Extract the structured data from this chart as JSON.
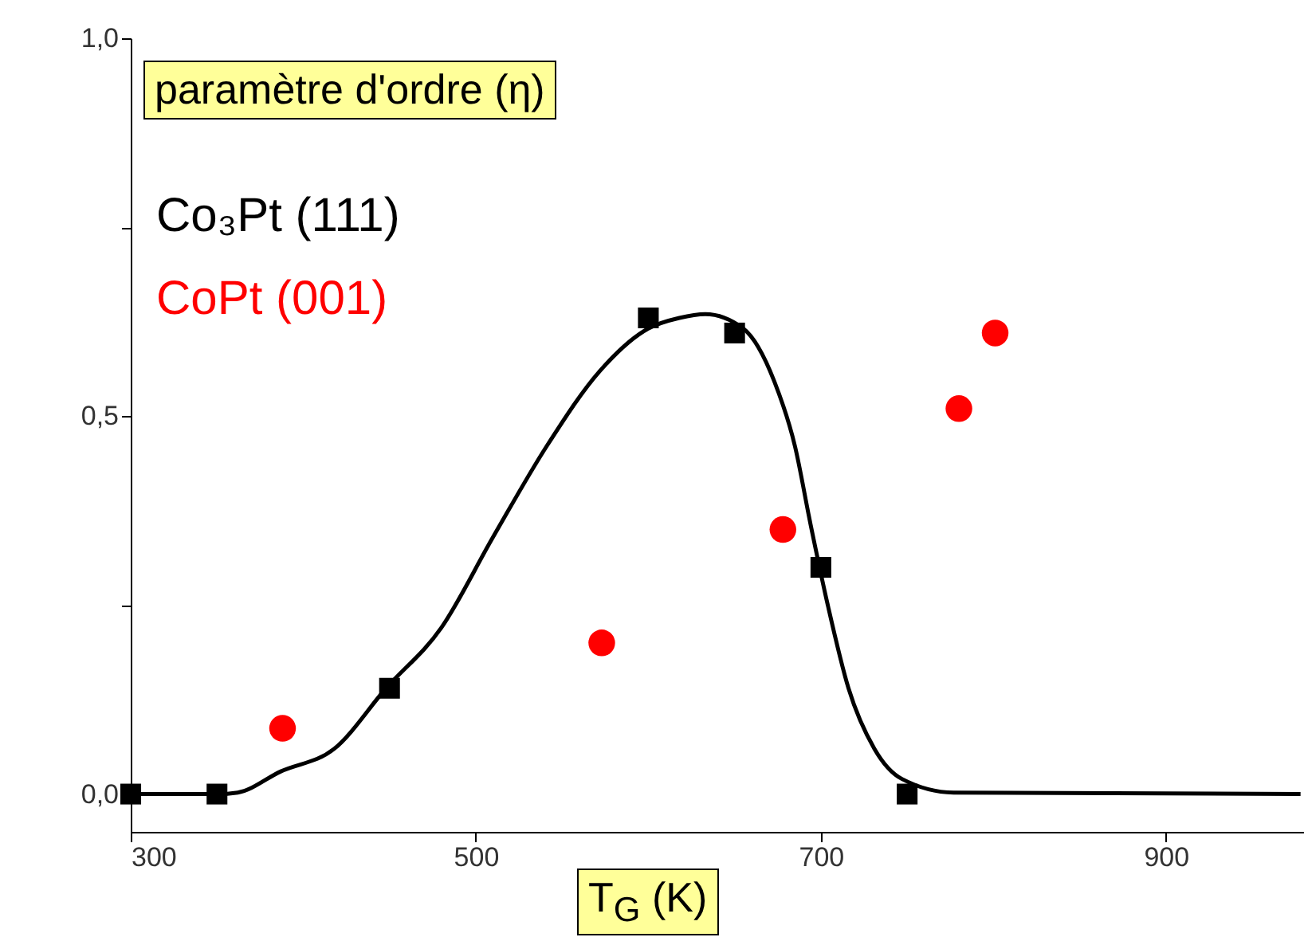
{
  "chart_data": {
    "type": "scatter",
    "ylabel": "paramètre d'ordre (η)",
    "xlabel": "T$_{G}$ (K)",
    "xlim": [
      300,
      980
    ],
    "ylim": [
      -0.05,
      1.0
    ],
    "xticks": [
      300,
      500,
      700,
      900
    ],
    "yticks": [
      {
        "value": 0,
        "label": "0,0"
      },
      {
        "value": 0.25,
        "label": null
      },
      {
        "value": 0.5,
        "label": "0,5"
      },
      {
        "value": 0.75,
        "label": null
      },
      {
        "value": 1.0,
        "label": "1,0"
      }
    ],
    "legend": "top left",
    "series": [
      {
        "type": "line",
        "color": "#000000",
        "marker": "none",
        "x": [
          300,
          350,
          362,
          387,
          418,
          448,
          480,
          510,
          541,
          572,
          600,
          618,
          633,
          655,
          673,
          685,
          694,
          704,
          716,
          731,
          747,
          777,
          978
        ],
        "values": [
          0,
          0,
          0.002,
          0.03,
          0.06,
          0.14,
          0.22,
          0.34,
          0.46,
          0.56,
          0.616,
          0.63,
          0.635,
          0.616,
          0.546,
          0.46,
          0.357,
          0.25,
          0.14,
          0.06,
          0.02,
          0.002,
          0
        ]
      },
      {
        "name": "Co₃Pt (111)",
        "color": "#000000",
        "marker": "square",
        "x": [
          300,
          350,
          450,
          600,
          650,
          700,
          750
        ],
        "values": [
          0,
          0,
          0.14,
          0.63,
          0.61,
          0.3,
          0
        ]
      },
      {
        "name": "CoPt (001)",
        "color": "#ff0000",
        "marker": "circle",
        "x": [
          388,
          573,
          678,
          780,
          801
        ],
        "values": [
          0.087,
          0.2,
          0.35,
          0.51,
          0.61
        ]
      }
    ]
  }
}
